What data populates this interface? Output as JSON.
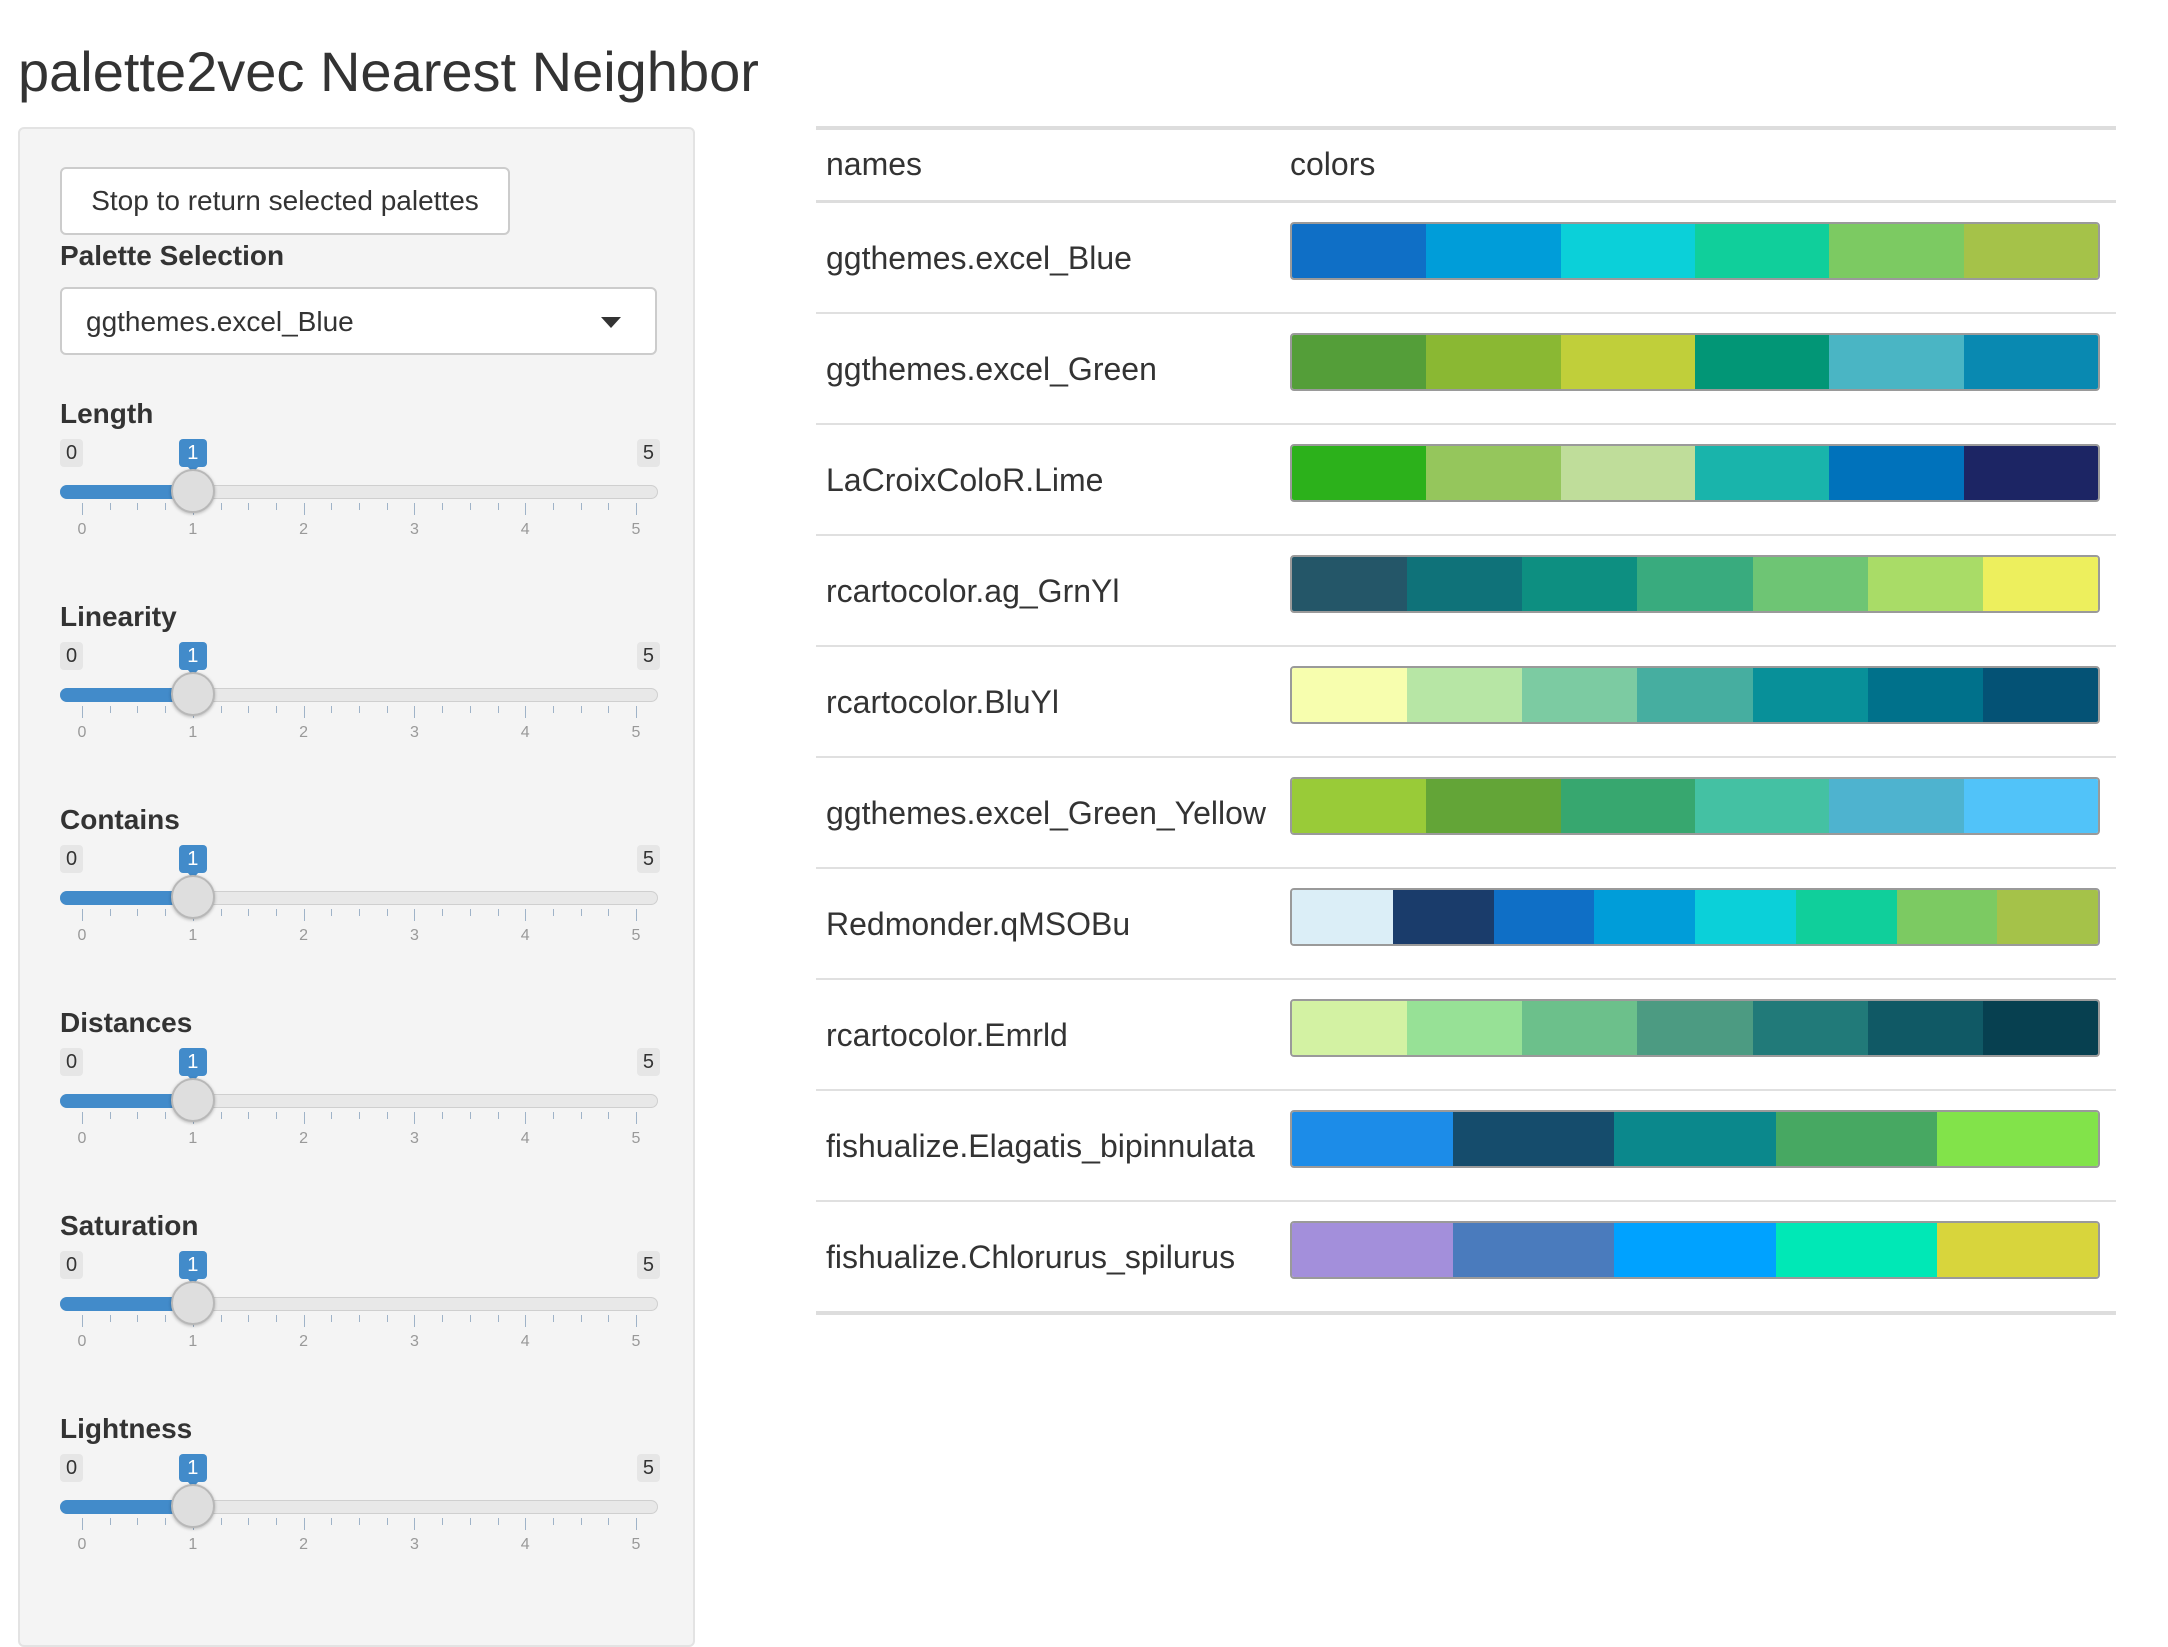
{
  "page": {
    "title": "palette2vec Nearest Neighbor"
  },
  "sidebar": {
    "stop_button": "Stop to return selected palettes",
    "palette_selection": {
      "label": "Palette Selection",
      "value": "ggthemes.excel_Blue"
    },
    "sliders": [
      {
        "label": "Length",
        "min": 0,
        "max": 5,
        "value": 1,
        "ticks": [
          "0",
          "1",
          "2",
          "3",
          "4",
          "5"
        ]
      },
      {
        "label": "Linearity",
        "min": 0,
        "max": 5,
        "value": 1,
        "ticks": [
          "0",
          "1",
          "2",
          "3",
          "4",
          "5"
        ]
      },
      {
        "label": "Contains",
        "min": 0,
        "max": 5,
        "value": 1,
        "ticks": [
          "0",
          "1",
          "2",
          "3",
          "4",
          "5"
        ]
      },
      {
        "label": "Distances",
        "min": 0,
        "max": 5,
        "value": 1,
        "ticks": [
          "0",
          "1",
          "2",
          "3",
          "4",
          "5"
        ]
      },
      {
        "label": "Saturation",
        "min": 0,
        "max": 5,
        "value": 1,
        "ticks": [
          "0",
          "1",
          "2",
          "3",
          "4",
          "5"
        ]
      },
      {
        "label": "Lightness",
        "min": 0,
        "max": 5,
        "value": 1,
        "ticks": [
          "0",
          "1",
          "2",
          "3",
          "4",
          "5"
        ]
      }
    ]
  },
  "table": {
    "headers": {
      "names": "names",
      "colors": "colors"
    },
    "rows": [
      {
        "name": "ggthemes.excel_Blue",
        "colors": [
          "#0f6fc6",
          "#009dd9",
          "#0bd0d9",
          "#10cf9b",
          "#7cca62",
          "#a5c249"
        ]
      },
      {
        "name": "ggthemes.excel_Green",
        "colors": [
          "#549e39",
          "#8ab833",
          "#c0cf3a",
          "#029676",
          "#4ab5c4",
          "#0989b1"
        ]
      },
      {
        "name": "LaCroixColoR.Lime",
        "colors": [
          "#2cb11b",
          "#95c65c",
          "#bfdd9a",
          "#19b4ab",
          "#0072bb",
          "#1c2564"
        ]
      },
      {
        "name": "rcartocolor.ag_GrnYl",
        "colors": [
          "#245668",
          "#0f7279",
          "#0d8f81",
          "#39ab7e",
          "#6ec574",
          "#a9dc67",
          "#edef5d"
        ]
      },
      {
        "name": "rcartocolor.BluYl",
        "colors": [
          "#f7feae",
          "#b7e6a5",
          "#7ccba2",
          "#46aea0",
          "#089099",
          "#00718b",
          "#045275"
        ]
      },
      {
        "name": "ggthemes.excel_Green_Yellow",
        "colors": [
          "#99cb38",
          "#63a537",
          "#37a76f",
          "#44c1a3",
          "#4eb3cf",
          "#51c3f9"
        ]
      },
      {
        "name": "Redmonder.qMSOBu",
        "colors": [
          "#dbeef7",
          "#1a3c6b",
          "#0f6fc6",
          "#009dd9",
          "#0bd0d9",
          "#10cf9b",
          "#7cca62",
          "#a5c249"
        ]
      },
      {
        "name": "rcartocolor.Emrld",
        "colors": [
          "#d3f2a3",
          "#97e196",
          "#6cc08b",
          "#4c9b82",
          "#217a79",
          "#105965",
          "#074050"
        ]
      },
      {
        "name": "fishualize.Elagatis_bipinnulata",
        "colors": [
          "#1c8ce8",
          "#154c6c",
          "#0b888c",
          "#47a862",
          "#82e34a"
        ]
      },
      {
        "name": "fishualize.Chlorurus_spilurus",
        "colors": [
          "#a38fdb",
          "#4a7bbd",
          "#00a2ff",
          "#00e8b6",
          "#d8d53c"
        ]
      }
    ]
  }
}
